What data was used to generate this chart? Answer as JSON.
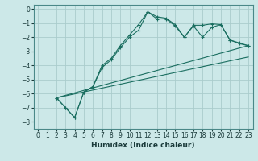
{
  "xlabel": "Humidex (Indice chaleur)",
  "xlim": [
    -0.5,
    23.5
  ],
  "ylim": [
    -8.5,
    0.3
  ],
  "xticks": [
    0,
    1,
    2,
    3,
    4,
    5,
    6,
    7,
    8,
    9,
    10,
    11,
    12,
    13,
    14,
    15,
    16,
    17,
    18,
    19,
    20,
    21,
    22,
    23
  ],
  "yticks": [
    0,
    -1,
    -2,
    -3,
    -4,
    -5,
    -6,
    -7,
    -8
  ],
  "background_color": "#cce8e8",
  "grid_color": "#aacccc",
  "line_color": "#1a6e60",
  "line1_x": [
    2,
    3,
    4,
    5,
    6,
    7,
    8,
    9,
    10,
    11,
    12,
    13,
    14,
    15,
    16,
    17,
    18,
    19,
    20,
    21,
    22,
    23
  ],
  "line1_y": [
    -6.3,
    -7.0,
    -7.7,
    -5.9,
    -5.5,
    -4.0,
    -3.5,
    -2.6,
    -1.85,
    -1.1,
    -0.2,
    -0.55,
    -0.65,
    -1.1,
    -2.0,
    -1.15,
    -1.15,
    -1.05,
    -1.1,
    -2.2,
    -2.45,
    -2.6
  ],
  "line2_x": [
    2,
    3,
    4,
    5,
    6,
    7,
    8,
    9,
    10,
    11,
    12,
    13,
    14,
    15,
    16,
    17,
    18,
    19,
    20,
    21,
    22,
    23
  ],
  "line2_y": [
    -6.3,
    -7.0,
    -7.7,
    -5.9,
    -5.5,
    -4.15,
    -3.6,
    -2.75,
    -2.0,
    -1.5,
    -0.2,
    -0.7,
    -0.7,
    -1.2,
    -2.0,
    -1.2,
    -2.0,
    -1.3,
    -1.1,
    -2.2,
    -2.4,
    -2.6
  ],
  "line3_x": [
    2,
    23
  ],
  "line3_y": [
    -6.3,
    -3.4
  ],
  "line4_x": [
    2,
    23
  ],
  "line4_y": [
    -6.3,
    -2.6
  ]
}
